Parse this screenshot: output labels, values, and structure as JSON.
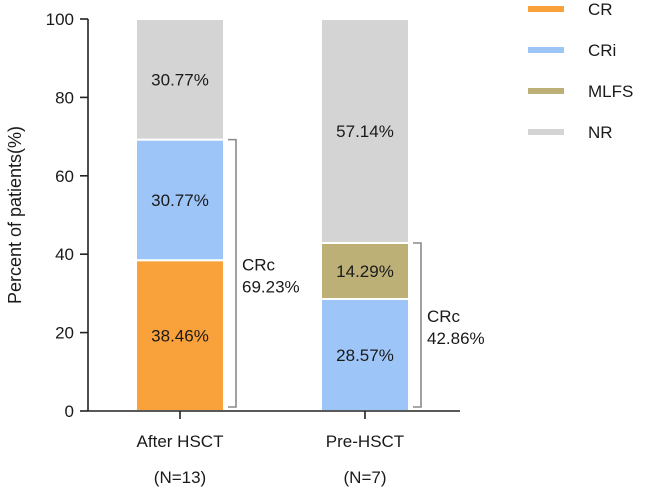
{
  "chart_data": {
    "type": "bar",
    "stacked": true,
    "title": "",
    "ylabel": "Percent of patients(%)",
    "xlabel": "",
    "ylim": [
      0,
      100
    ],
    "yticks": [
      0,
      20,
      40,
      60,
      80,
      100
    ],
    "categories": [
      "After HSCT",
      "Pre-HSCT"
    ],
    "category_counts": [
      "(N=13)",
      "(N=7)"
    ],
    "series": [
      {
        "name": "CR",
        "color": "#f9a13a",
        "values": [
          38.46,
          0
        ],
        "labels": [
          "38.46%",
          ""
        ]
      },
      {
        "name": "CRi",
        "color": "#9ec5f8",
        "values": [
          30.77,
          28.57
        ],
        "labels": [
          "30.77%",
          "28.57%"
        ]
      },
      {
        "name": "MLFS",
        "color": "#bdb077",
        "values": [
          0,
          14.29
        ],
        "labels": [
          "",
          "14.29%"
        ]
      },
      {
        "name": "NR",
        "color": "#d4d4d4",
        "values": [
          30.77,
          57.14
        ],
        "labels": [
          "30.77%",
          "57.14%"
        ]
      }
    ],
    "annotations": [
      {
        "category": "After HSCT",
        "label": "CRc",
        "value": "69.23%",
        "from": 0,
        "to": 69.23
      },
      {
        "category": "Pre-HSCT",
        "label": "CRc",
        "value": "42.86%",
        "from": 0,
        "to": 42.86
      }
    ],
    "legend": "top-right"
  }
}
